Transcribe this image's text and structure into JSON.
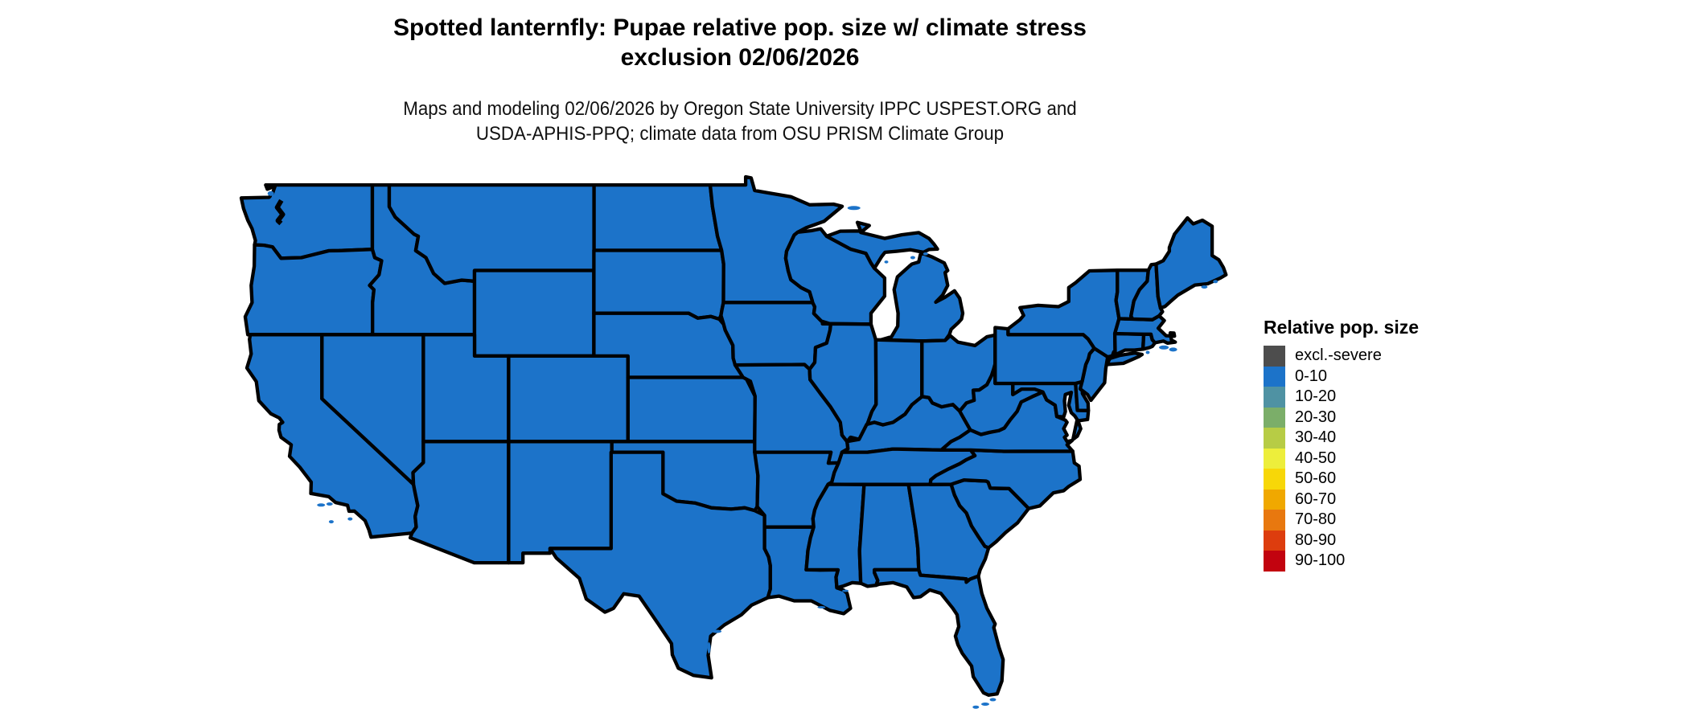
{
  "title": {
    "line1": "Spotted lanternfly: Pupae relative pop. size w/ climate stress",
    "line2": "exclusion 02/06/2026"
  },
  "subtitle": {
    "line1": "Maps and modeling 02/06/2026 by Oregon State University IPPC USPEST.ORG and",
    "line2": "USDA-APHIS-PPQ; climate data from OSU PRISM Climate Group"
  },
  "legend": {
    "title": "Relative pop. size",
    "items": [
      {
        "label": "excl.-severe",
        "color": "#4d4d4d"
      },
      {
        "label": "0-10",
        "color": "#1c73c9"
      },
      {
        "label": "10-20",
        "color": "#4f92a3"
      },
      {
        "label": "20-30",
        "color": "#7bae69"
      },
      {
        "label": "30-40",
        "color": "#b7cc45"
      },
      {
        "label": "40-50",
        "color": "#edee3b"
      },
      {
        "label": "50-60",
        "color": "#f7d708"
      },
      {
        "label": "60-70",
        "color": "#f0a800"
      },
      {
        "label": "70-80",
        "color": "#e8780f"
      },
      {
        "label": "80-90",
        "color": "#dd3d0e"
      },
      {
        "label": "90-100",
        "color": "#c2030f"
      }
    ]
  },
  "map": {
    "fill_color": "#1c73c9",
    "border_color": "#000000",
    "background": "#ffffff",
    "fill_class": "0-10"
  },
  "chart_data": {
    "type": "choropleth",
    "region": "contiguous United States",
    "classes": [
      "excl.-severe",
      "0-10",
      "10-20",
      "20-30",
      "30-40",
      "40-50",
      "50-60",
      "60-70",
      "70-80",
      "80-90",
      "90-100"
    ],
    "all_states_value": "0-10",
    "states": [
      "Washington",
      "Oregon",
      "California",
      "Idaho",
      "Nevada",
      "Montana",
      "Wyoming",
      "Utah",
      "Arizona",
      "Colorado",
      "New Mexico",
      "North Dakota",
      "South Dakota",
      "Nebraska",
      "Kansas",
      "Oklahoma",
      "Texas",
      "Minnesota",
      "Iowa",
      "Missouri",
      "Arkansas",
      "Louisiana",
      "Wisconsin",
      "Illinois",
      "Michigan",
      "Indiana",
      "Ohio",
      "Kentucky",
      "Tennessee",
      "Mississippi",
      "Alabama",
      "Georgia",
      "Florida",
      "South Carolina",
      "North Carolina",
      "Virginia",
      "West Virginia",
      "Maryland",
      "Delaware",
      "New Jersey",
      "Pennsylvania",
      "New York",
      "Connecticut",
      "Rhode Island",
      "Massachusetts",
      "Vermont",
      "New Hampshire",
      "Maine"
    ]
  }
}
